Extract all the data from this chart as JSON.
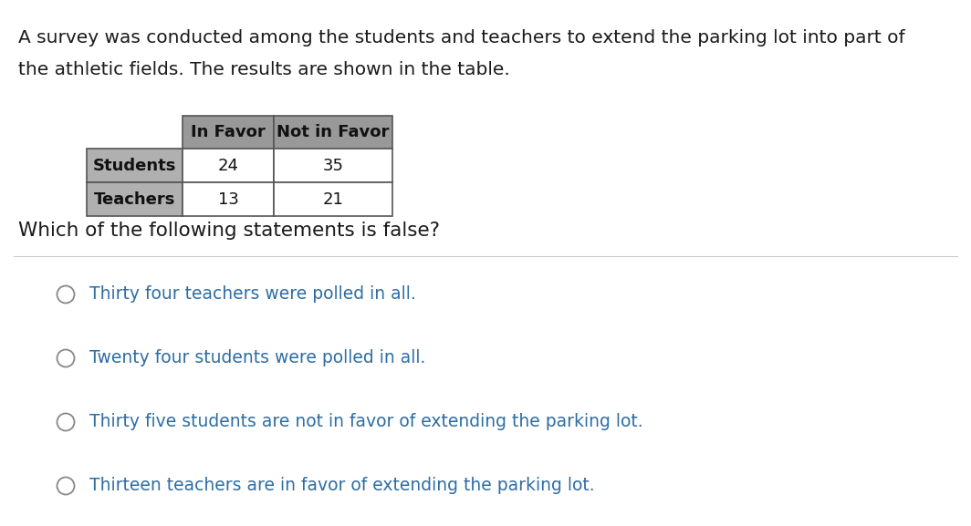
{
  "intro_text_line1": "A survey was conducted among the students and teachers to extend the parking lot into part of",
  "intro_text_line2": "the athletic fields. The results are shown in the table.",
  "table_headers": [
    "In Favor",
    "Not in Favor"
  ],
  "table_rows": [
    [
      "Students",
      "24",
      "35"
    ],
    [
      "Teachers",
      "13",
      "21"
    ]
  ],
  "question_text": "Which of the following statements is false?",
  "options": [
    "Thirty four teachers were polled in all.",
    "Twenty four students were polled in all.",
    "Thirty five students are not in favor of extending the parking lot.",
    "Thirteen teachers are in favor of extending the parking lot."
  ],
  "bg_color": "#ffffff",
  "text_color_black": "#1a1a1a",
  "option_text_color": "#2e6da4",
  "table_header_bg": "#999999",
  "table_row_label_bg": "#b0b0b0",
  "table_border_color": "#555555",
  "intro_fontsize": 14.5,
  "question_fontsize": 15.5,
  "option_fontsize": 13.5,
  "table_fontsize": 13
}
